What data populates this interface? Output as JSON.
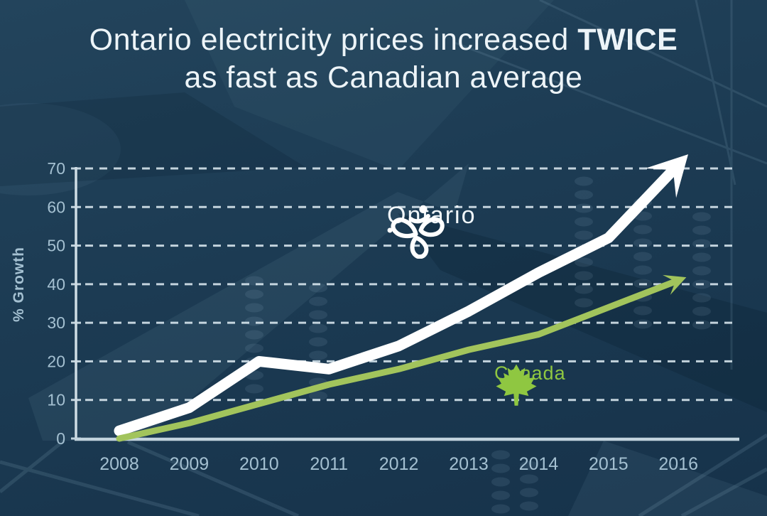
{
  "title": {
    "line1_regular": "Ontario electricity prices increased ",
    "line1_bold": "TWICE",
    "line2": "as fast as Canadian average"
  },
  "chart_data": {
    "type": "line",
    "x": [
      2008,
      2009,
      2010,
      2011,
      2012,
      2013,
      2014,
      2015,
      2016
    ],
    "series": [
      {
        "name": "Ontario",
        "color": "#ffffff",
        "icon": "trillium-icon",
        "values": [
          2,
          8,
          20,
          18,
          24,
          33,
          43,
          52,
          71
        ],
        "end_arrow": true
      },
      {
        "name": "Canada",
        "color": "#a2c45c",
        "icon": "maple-leaf-icon",
        "values": [
          0,
          4,
          9,
          14,
          18,
          23,
          27,
          34,
          41
        ],
        "end_arrow": true
      }
    ],
    "ylabel": "% Growth",
    "xlabel": "",
    "yticks": [
      0,
      10,
      20,
      30,
      40,
      50,
      60,
      70
    ],
    "ylim": [
      0,
      70
    ],
    "grid": "horizontal-dashed",
    "legend": "inline-labels-near-lines"
  },
  "colors": {
    "background": "#1b3a52",
    "title_text": "#edf4f8",
    "axis_text": "#a4c0d1",
    "axis_line": "#c2d3dd",
    "ontario_line": "#ffffff",
    "canada_green": "#8fc741"
  }
}
